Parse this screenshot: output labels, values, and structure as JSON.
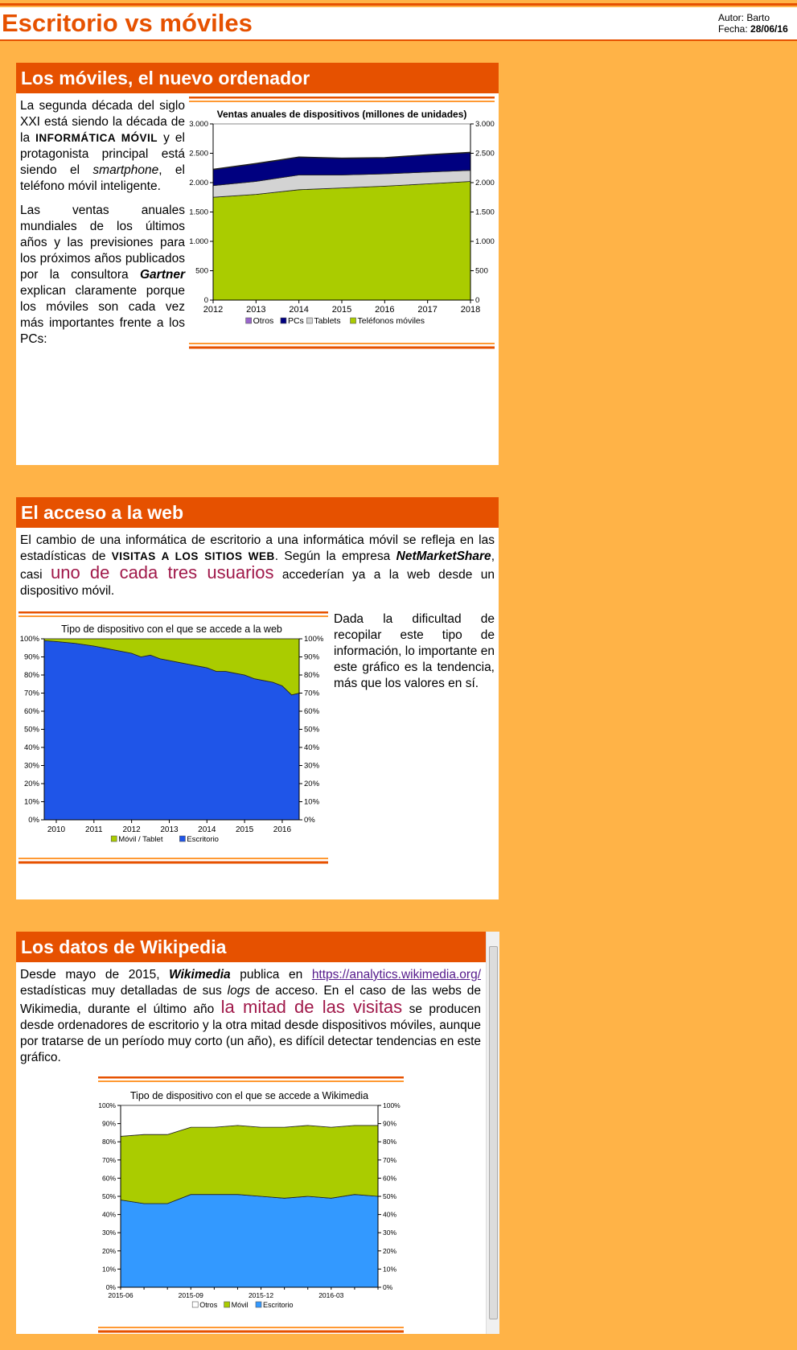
{
  "header": {
    "title": "Escritorio vs móviles",
    "author_label": "Autor:",
    "author": "Barto",
    "date_label": "Fecha:",
    "date": "28/06/16"
  },
  "sections": [
    {
      "title": "Los móviles, el nuevo ordenador",
      "paragraphs": [
        [
          "La segunda década del siglo XXI está siendo la década de la ",
          "INFORMÁTICA MÓVIL",
          " y el protagonista principal está siendo el ",
          "smartphone",
          ", el teléfono móvil inteligente."
        ],
        [
          "Las ventas anuales mundiales de los últimos años y las previsiones para los próximos años publicados por la consultora ",
          "Gartner",
          " explican claramente porque los móviles son cada vez más importantes frente a los PCs:"
        ]
      ],
      "chart_data": {
        "type": "area",
        "stacked": true,
        "title": "Ventas anuales de dispositivos (millones de unidades)",
        "x": [
          2012,
          2013,
          2014,
          2015,
          2016,
          2017,
          2018
        ],
        "xlim": [
          2012,
          2018
        ],
        "xticks": [
          2012,
          2013,
          2014,
          2015,
          2016,
          2017,
          2018
        ],
        "ylim": [
          0,
          3000
        ],
        "yticks": [
          0,
          500,
          {
            "value": 1000,
            "label": "1.000"
          },
          {
            "value": 1500,
            "label": "1.500"
          },
          {
            "value": 2000,
            "label": "2.000"
          },
          {
            "value": 2500,
            "label": "2.500"
          },
          {
            "value": 3000,
            "label": "3.000"
          }
        ],
        "series": [
          {
            "name": "Otros",
            "color": "#9966cc",
            "values": [
              10,
              10,
              10,
              10,
              10,
              10,
              10
            ]
          },
          {
            "name": "PCs",
            "color": "#000080",
            "values": [
              270,
              300,
              300,
              280,
              270,
              290,
              300
            ]
          },
          {
            "name": "Tablets",
            "color": "#d3d3d3",
            "values": [
              200,
              220,
              250,
              220,
              210,
              200,
              190
            ]
          },
          {
            "name": "Teléfonos móviles",
            "color": "#aacc00",
            "values": [
              1750,
              1800,
              1880,
              1910,
              1940,
              1980,
              2020
            ]
          }
        ]
      }
    },
    {
      "title": "El acceso a la web",
      "paragraphs": [
        [
          "El cambio de una informática de escritorio a una informática móvil se refleja en las estadísticas de ",
          "VISITAS A LOS SITIOS WEB",
          ". Según la empresa ",
          "NetMarketShare",
          ", casi ",
          "uno de cada tres usuarios",
          " accederían ya a la web desde un dispositivo móvil."
        ],
        [
          "Dada la dificultad de recopilar este tipo de información, lo importante en este gráfico es la tendencia, más que los valores en sí."
        ]
      ],
      "chart_data": {
        "type": "area",
        "stacked": true,
        "title": "Tipo de dispositivo con el que se accede a la web",
        "x": [
          2009.68,
          2010,
          2010.5,
          2011,
          2011.5,
          2012,
          2012.25,
          2012.5,
          2012.75,
          2013,
          2013.25,
          2013.5,
          2013.75,
          2014,
          2014.25,
          2014.5,
          2014.75,
          2015,
          2015.25,
          2015.5,
          2015.75,
          2016,
          2016.25,
          2016.45
        ],
        "xlim": [
          2009.68,
          2016.45
        ],
        "xticks": [
          2010,
          2011,
          2012,
          2013,
          2014,
          2015,
          2016
        ],
        "ylim": [
          0,
          100
        ],
        "yticks": [
          {
            "value": 0,
            "label": "0%"
          },
          {
            "value": 10,
            "label": "10%"
          },
          {
            "value": 20,
            "label": "20%"
          },
          {
            "value": 30,
            "label": "30%"
          },
          {
            "value": 40,
            "label": "40%"
          },
          {
            "value": 50,
            "label": "50%"
          },
          {
            "value": 60,
            "label": "60%"
          },
          {
            "value": 70,
            "label": "70%"
          },
          {
            "value": 80,
            "label": "80%"
          },
          {
            "value": 90,
            "label": "90%"
          },
          {
            "value": 100,
            "label": "100%"
          }
        ],
        "series": [
          {
            "name": "Móvil / Tablet",
            "color": "#aacc00",
            "values": [
              1,
              1.5,
              2.5,
              4,
              6,
              8,
              10,
              9,
              11,
              12,
              13,
              14,
              15,
              16,
              18,
              18,
              19,
              20,
              22,
              23,
              24,
              26,
              31,
              30
            ]
          },
          {
            "name": "Escritorio",
            "color": "#1f55e8",
            "values": [
              99,
              98.5,
              97.5,
              96,
              94,
              92,
              90,
              91,
              89,
              88,
              87,
              86,
              85,
              84,
              82,
              82,
              81,
              80,
              78,
              77,
              76,
              74,
              69,
              70
            ]
          }
        ]
      }
    },
    {
      "title": "Los datos de Wikipedia",
      "paragraphs": [
        [
          "Desde mayo de 2015, ",
          "Wikimedia",
          " publica en ",
          "https://analytics.wikimedia.org/",
          " estadísticas muy detalladas de sus ",
          "logs",
          " de acceso. En el caso de las webs de Wikimedia, durante el último año ",
          "la mitad de las visitas",
          " se producen desde ordenadores de escritorio y la otra mitad desde dispositivos móviles, aunque por tratarse de un período muy corto (un año), es difícil detectar tendencias en este gráfico."
        ]
      ],
      "chart_data": {
        "type": "area",
        "stacked": true,
        "title": "Tipo de dispositivo con el que se accede a Wikimedia",
        "categories": [
          "2015-06",
          null,
          null,
          "2015-09",
          null,
          null,
          "2015-12",
          null,
          null,
          "2016-03",
          null,
          null
        ],
        "ylim": [
          0,
          100
        ],
        "yticks": [
          {
            "value": 0,
            "label": "0%"
          },
          {
            "value": 10,
            "label": "10%"
          },
          {
            "value": 20,
            "label": "20%"
          },
          {
            "value": 30,
            "label": "30%"
          },
          {
            "value": 40,
            "label": "40%"
          },
          {
            "value": 50,
            "label": "50%"
          },
          {
            "value": 60,
            "label": "60%"
          },
          {
            "value": 70,
            "label": "70%"
          },
          {
            "value": 80,
            "label": "80%"
          },
          {
            "value": 90,
            "label": "90%"
          },
          {
            "value": 100,
            "label": "100%"
          }
        ],
        "series": [
          {
            "name": "Otros",
            "color": "#ffffff",
            "values": [
              17,
              16,
              16,
              12,
              12,
              11,
              12,
              12,
              11,
              12,
              11,
              11
            ]
          },
          {
            "name": "Móvil",
            "color": "#aacc00",
            "values": [
              35,
              38,
              38,
              37,
              37,
              38,
              38,
              39,
              39,
              39,
              38,
              39
            ]
          },
          {
            "name": "Escritorio",
            "color": "#3399ff",
            "values": [
              48,
              46,
              46,
              51,
              51,
              51,
              50,
              49,
              50,
              49,
              51,
              50
            ]
          }
        ]
      }
    }
  ]
}
